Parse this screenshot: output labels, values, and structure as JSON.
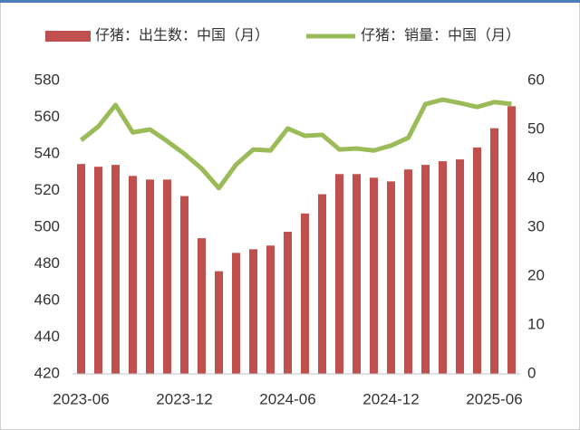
{
  "chart_data": {
    "type": "bar_line",
    "categories": [
      "2023-06",
      null,
      null,
      null,
      null,
      null,
      "2023-12",
      null,
      null,
      null,
      null,
      null,
      "2024-06",
      null,
      null,
      null,
      null,
      null,
      "2024-12",
      null,
      null,
      null,
      null,
      null,
      "2025-06",
      null
    ],
    "series": [
      {
        "name": "仔猪：出生数：中国（月）",
        "type": "bar",
        "color": "#c0504d",
        "values": [
          534.5,
          533,
          534,
          528,
          526,
          526,
          517,
          494,
          476,
          486,
          488,
          490,
          497.5,
          507.5,
          518,
          529,
          529,
          527,
          525,
          531.5,
          534,
          536,
          537,
          543.5,
          554,
          566
        ]
      },
      {
        "name": "仔猪：销量：中国（月）",
        "type": "line",
        "axis": "y2",
        "color": "#9bbb59",
        "values": [
          47.8,
          50.6,
          55,
          49.4,
          50,
          47.6,
          45,
          42,
          38,
          42.8,
          45.9,
          45.7,
          50.2,
          48.7,
          48.9,
          45.9,
          46.1,
          45.7,
          46.7,
          48.3,
          55.2,
          56.1,
          55.4,
          54.6,
          55.6,
          55.2
        ]
      }
    ],
    "ylim": [
      420,
      580
    ],
    "yticks": [
      420,
      440,
      460,
      480,
      500,
      520,
      540,
      560,
      580
    ],
    "y2lim": [
      0,
      60
    ],
    "y2ticks": [
      0,
      10,
      20,
      30,
      40,
      50,
      60
    ],
    "legend": "top"
  }
}
